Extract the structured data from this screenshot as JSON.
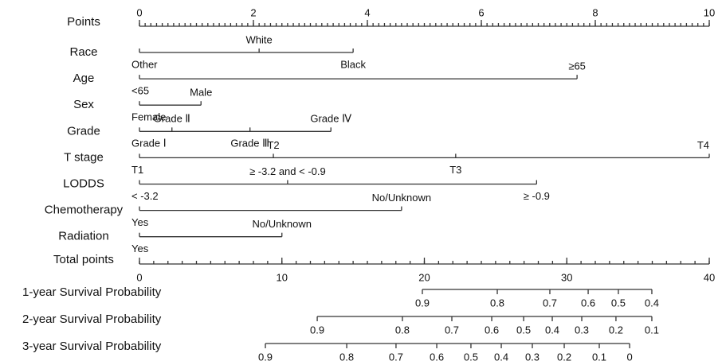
{
  "chart_data": {
    "type": "nomogram",
    "points_axis": {
      "title": "Points",
      "xlim": [
        0,
        10
      ],
      "xticks": [
        0,
        2,
        4,
        6,
        8,
        10
      ],
      "minor_step": 0.1
    },
    "variables": [
      {
        "name": "Race",
        "levels": [
          {
            "label": "Other",
            "points": 0
          },
          {
            "label": "White",
            "points": 2.1
          },
          {
            "label": "Black",
            "points": 3.75
          }
        ]
      },
      {
        "name": "Age",
        "levels": [
          {
            "label": "<65",
            "points": 0
          },
          {
            "label": "≥65",
            "points": 7.68
          }
        ]
      },
      {
        "name": "Sex",
        "levels": [
          {
            "label": "Female",
            "points": 0
          },
          {
            "label": "Male",
            "points": 1.08
          }
        ]
      },
      {
        "name": "Grade",
        "levels": [
          {
            "label": "Grade Ⅰ",
            "points": 0
          },
          {
            "label": "Grade Ⅱ",
            "points": 0.57
          },
          {
            "label": "Grade Ⅲ",
            "points": 1.94
          },
          {
            "label": "Grade Ⅳ",
            "points": 3.36
          }
        ]
      },
      {
        "name": "T stage",
        "levels": [
          {
            "label": "T1",
            "points": 0
          },
          {
            "label": "T2",
            "points": 2.35
          },
          {
            "label": "T3",
            "points": 5.55
          },
          {
            "label": "T4",
            "points": 10
          }
        ]
      },
      {
        "name": "LODDS",
        "levels": [
          {
            "label": "< -3.2",
            "points": 0
          },
          {
            "label": "≥ -3.2 and < -0.9",
            "points": 2.6
          },
          {
            "label": "≥ -0.9",
            "points": 6.97
          }
        ]
      },
      {
        "name": "Chemotherapy",
        "levels": [
          {
            "label": "Yes",
            "points": 0
          },
          {
            "label": "No/Unknown",
            "points": 4.6
          }
        ]
      },
      {
        "name": "Radiation",
        "levels": [
          {
            "label": "Yes",
            "points": 0
          },
          {
            "label": "No/Unknown",
            "points": 2.5
          }
        ]
      }
    ],
    "total_points_axis": {
      "title": "Total points",
      "xlim": [
        0,
        40
      ],
      "xticks": [
        0,
        10,
        20,
        30,
        40
      ],
      "minor_step": 1
    },
    "survival": [
      {
        "name": "1-year Survival Probability",
        "ticks": [
          0.9,
          0.8,
          0.7,
          0.6,
          0.5,
          0.4
        ],
        "points": [
          19.86,
          25.12,
          28.81,
          31.5,
          33.62,
          35.97
        ]
      },
      {
        "name": "2-year Survival Probability",
        "ticks": [
          0.9,
          0.8,
          0.7,
          0.6,
          0.5,
          0.4,
          0.3,
          0.2,
          0.1
        ],
        "points": [
          12.48,
          18.46,
          21.93,
          24.73,
          26.97,
          28.98,
          31.05,
          33.45,
          35.97
        ]
      },
      {
        "name": "3-year Survival Probability",
        "ticks": [
          0.9,
          0.8,
          0.7,
          0.6,
          0.5,
          0.4,
          0.3,
          0.2,
          0.1,
          0
        ],
        "points": [
          8.84,
          14.55,
          18.01,
          20.87,
          23.27,
          25.4,
          27.58,
          29.82,
          32.28,
          34.41
        ]
      }
    ]
  }
}
